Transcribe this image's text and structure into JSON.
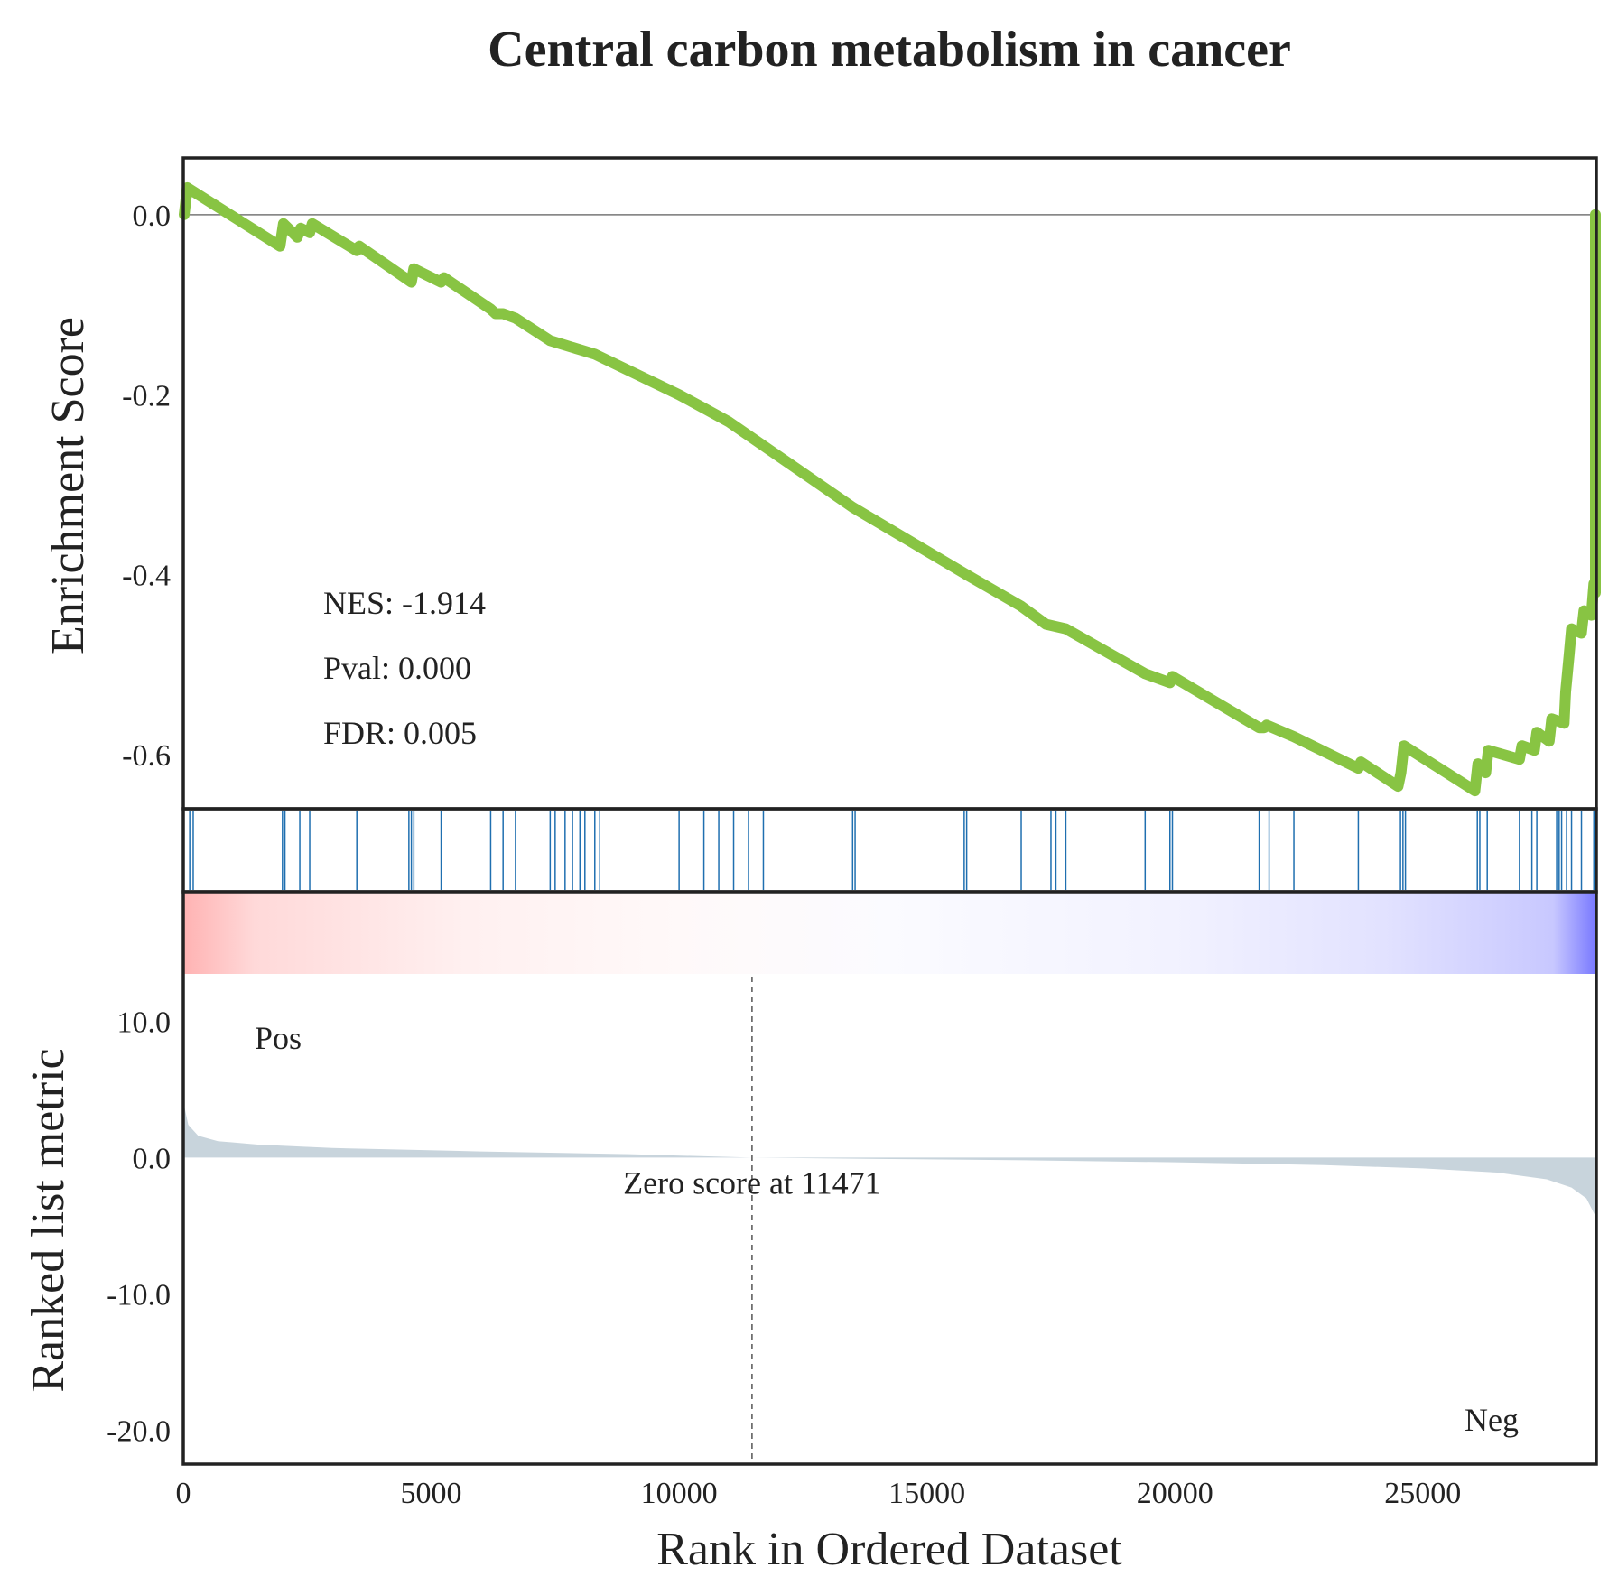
{
  "chart_data": {
    "type": "line",
    "title": "Central carbon metabolism in cancer",
    "xlabel": "Rank in Ordered Dataset",
    "xlim": [
      0,
      28500
    ],
    "x_ticks": [
      "0",
      "5000",
      "10000",
      "15000",
      "20000",
      "25000"
    ],
    "x_tick_values": [
      0,
      5000,
      10000,
      15000,
      20000,
      25000
    ],
    "enrichment": {
      "ylabel": "Enrichment Score",
      "ylim": [
        -0.66,
        0.063
      ],
      "y_ticks": [
        "0.0",
        "-0.2",
        "-0.4",
        "-0.6"
      ],
      "y_tick_values": [
        0.0,
        -0.2,
        -0.4,
        -0.6
      ],
      "color": "#88c443",
      "points": [
        [
          0,
          0.0
        ],
        [
          80,
          0.03
        ],
        [
          1950,
          -0.035
        ],
        [
          2020,
          -0.01
        ],
        [
          2300,
          -0.025
        ],
        [
          2370,
          -0.015
        ],
        [
          2550,
          -0.02
        ],
        [
          2600,
          -0.01
        ],
        [
          3500,
          -0.04
        ],
        [
          3550,
          -0.035
        ],
        [
          4600,
          -0.075
        ],
        [
          4650,
          -0.06
        ],
        [
          5200,
          -0.075
        ],
        [
          5260,
          -0.07
        ],
        [
          6200,
          -0.105
        ],
        [
          6300,
          -0.11
        ],
        [
          6450,
          -0.11
        ],
        [
          6700,
          -0.115
        ],
        [
          7400,
          -0.14
        ],
        [
          7700,
          -0.145
        ],
        [
          8000,
          -0.15
        ],
        [
          8300,
          -0.155
        ],
        [
          10000,
          -0.2
        ],
        [
          10500,
          -0.215
        ],
        [
          11000,
          -0.23
        ],
        [
          13500,
          -0.325
        ],
        [
          15800,
          -0.4
        ],
        [
          16900,
          -0.435
        ],
        [
          17400,
          -0.455
        ],
        [
          17800,
          -0.46
        ],
        [
          19400,
          -0.51
        ],
        [
          19900,
          -0.52
        ],
        [
          19950,
          -0.513
        ],
        [
          21700,
          -0.57
        ],
        [
          21800,
          -0.57
        ],
        [
          21850,
          -0.567
        ],
        [
          22400,
          -0.58
        ],
        [
          23700,
          -0.615
        ],
        [
          23750,
          -0.608
        ],
        [
          24500,
          -0.635
        ],
        [
          24560,
          -0.62
        ],
        [
          24620,
          -0.59
        ],
        [
          26050,
          -0.64
        ],
        [
          26110,
          -0.61
        ],
        [
          26270,
          -0.62
        ],
        [
          26320,
          -0.595
        ],
        [
          26950,
          -0.605
        ],
        [
          27000,
          -0.59
        ],
        [
          27250,
          -0.595
        ],
        [
          27300,
          -0.575
        ],
        [
          27550,
          -0.585
        ],
        [
          27600,
          -0.56
        ],
        [
          27850,
          -0.565
        ],
        [
          27880,
          -0.53
        ],
        [
          27950,
          -0.49
        ],
        [
          28000,
          -0.46
        ],
        [
          28200,
          -0.465
        ],
        [
          28250,
          -0.44
        ],
        [
          28400,
          -0.445
        ],
        [
          28450,
          -0.41
        ],
        [
          28600,
          -0.42
        ],
        [
          28630,
          -0.33
        ],
        [
          28660,
          -0.22
        ],
        [
          28700,
          0.0
        ]
      ]
    },
    "hits": [
      130,
      200,
      2000,
      2050,
      2350,
      2550,
      3500,
      4550,
      4600,
      4650,
      5200,
      6200,
      6450,
      6700,
      7400,
      7500,
      7700,
      7850,
      8000,
      8100,
      8300,
      8400,
      10000,
      10500,
      10800,
      11100,
      11400,
      11700,
      13500,
      13550,
      15750,
      15800,
      16900,
      17500,
      17600,
      17800,
      19400,
      19900,
      19950,
      21700,
      21900,
      22400,
      23700,
      24550,
      24600,
      24650,
      26100,
      26150,
      26300,
      26950,
      27200,
      27300,
      27700,
      27750,
      27800,
      27900,
      28000,
      28200,
      28450,
      28580
    ],
    "ranked_metric": {
      "ylabel": "Ranked list metric",
      "ylim": [
        -22.5,
        19.5
      ],
      "y_ticks": [
        "10.0",
        "0.0",
        "-10.0",
        "-20.0"
      ],
      "y_tick_values": [
        10.0,
        0.0,
        -10.0,
        -20.0
      ],
      "fill_color": "#c8d4dc",
      "points": [
        [
          0,
          3.8
        ],
        [
          100,
          2.4
        ],
        [
          300,
          1.6
        ],
        [
          700,
          1.2
        ],
        [
          1500,
          0.95
        ],
        [
          3000,
          0.7
        ],
        [
          6000,
          0.45
        ],
        [
          9000,
          0.25
        ],
        [
          11471,
          0.0
        ],
        [
          14000,
          -0.1
        ],
        [
          17000,
          -0.2
        ],
        [
          20000,
          -0.35
        ],
        [
          23000,
          -0.55
        ],
        [
          25000,
          -0.8
        ],
        [
          26500,
          -1.1
        ],
        [
          27500,
          -1.6
        ],
        [
          28000,
          -2.2
        ],
        [
          28300,
          -3.0
        ],
        [
          28500,
          -4.3
        ],
        [
          28600,
          -6.0
        ],
        [
          28650,
          -9.0
        ],
        [
          28700,
          -9.5
        ]
      ],
      "zero_cross": 11471,
      "zero_label": "Zero score at 11471",
      "pos_label": "Pos",
      "neg_label": "Neg",
      "pos_color": "#ff0000",
      "neg_color": "#0000ff"
    },
    "stats": {
      "nes": "NES: -1.914",
      "pval": "Pval: 0.000",
      "fdr": "FDR: 0.005"
    },
    "line_color": "#1f6fb0"
  }
}
